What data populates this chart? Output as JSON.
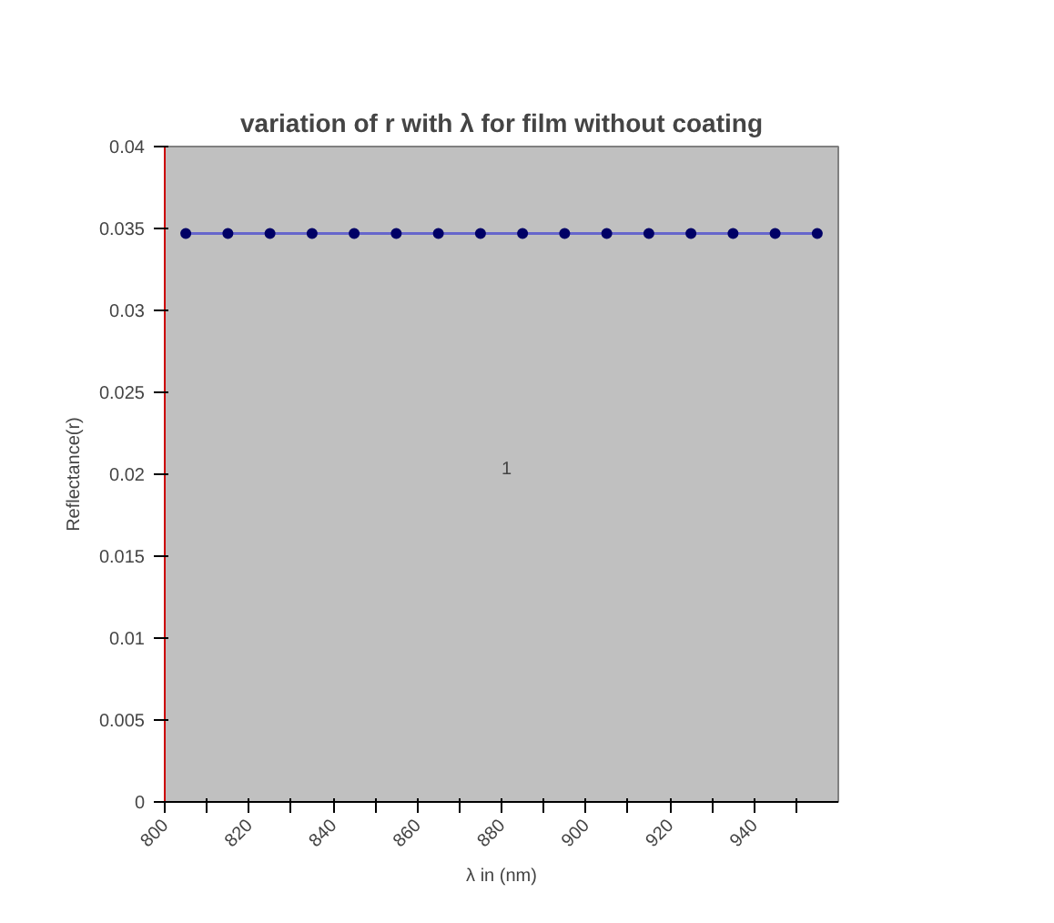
{
  "chart_data": {
    "type": "line",
    "title": "variation of r with λ for film without coating",
    "xlabel": "λ in (nm)",
    "ylabel": "Reflectance(r)",
    "x": [
      805,
      815,
      825,
      835,
      845,
      855,
      865,
      875,
      885,
      895,
      905,
      915,
      925,
      935,
      945,
      955
    ],
    "series": [
      {
        "color": "#000066",
        "values": [
          0.0347,
          0.0347,
          0.0347,
          0.0347,
          0.0347,
          0.0347,
          0.0347,
          0.0347,
          0.0347,
          0.0347,
          0.0347,
          0.0347,
          0.0347,
          0.0347,
          0.0347,
          0.0347
        ]
      }
    ],
    "xlim": [
      800,
      960
    ],
    "xticks": [
      800,
      {
        "value": 810,
        "label": null
      },
      820,
      {
        "value": 830,
        "label": null
      },
      840,
      {
        "value": 850,
        "label": null
      },
      860,
      {
        "value": 870,
        "label": null
      },
      880,
      {
        "value": 890,
        "label": null
      },
      900,
      {
        "value": 910,
        "label": null
      },
      920,
      {
        "value": 930,
        "label": null
      },
      940,
      {
        "value": 950,
        "label": null
      }
    ],
    "ylim": [
      0,
      0.04
    ],
    "yticks": [
      0,
      0.005,
      0.01,
      0.015,
      0.02,
      0.025,
      0.03,
      0.035,
      0.04
    ],
    "annotations": [
      "1"
    ],
    "marker": "circle"
  }
}
